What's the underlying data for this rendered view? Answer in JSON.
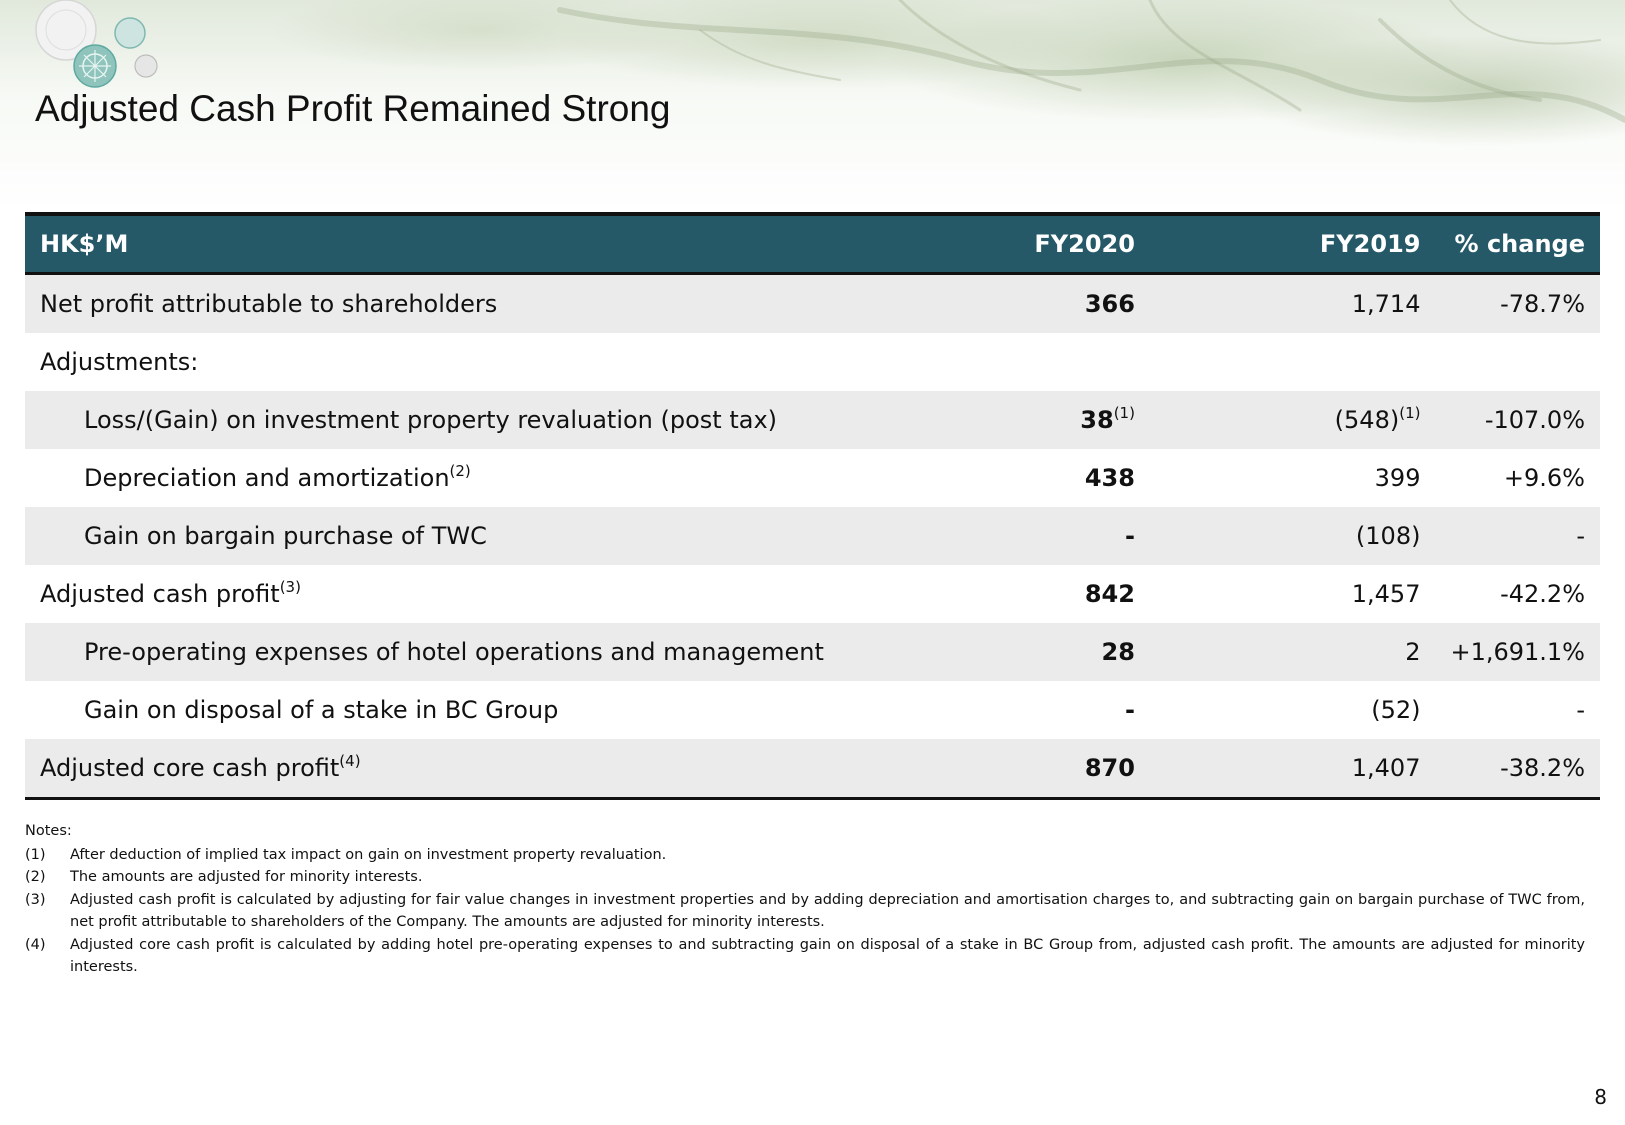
{
  "header": {
    "title": "Adjusted Cash Profit Remained Strong"
  },
  "table": {
    "columns": [
      "HK$’M",
      "FY2020",
      "FY2019",
      "% change"
    ],
    "rows": [
      {
        "label": "Net profit attributable to shareholders",
        "label_sup": "",
        "fy2020": "366",
        "fy2020_sup": "",
        "fy2019": "1,714",
        "fy2019_sup": "",
        "change": "-78.7%"
      },
      {
        "label": "Adjustments:",
        "label_sup": "",
        "fy2020": "",
        "fy2020_sup": "",
        "fy2019": "",
        "fy2019_sup": "",
        "change": ""
      },
      {
        "label": "Loss/(Gain) on investment property revaluation (post tax)",
        "label_sup": "",
        "fy2020": "38",
        "fy2020_sup": "(1)",
        "fy2019": "(548)",
        "fy2019_sup": "(1)",
        "change": "-107.0%"
      },
      {
        "label": "Depreciation and amortization",
        "label_sup": "(2)",
        "fy2020": "438",
        "fy2020_sup": "",
        "fy2019": "399",
        "fy2019_sup": "",
        "change": "+9.6%"
      },
      {
        "label": "Gain on bargain purchase of TWC",
        "label_sup": "",
        "fy2020": "-",
        "fy2020_sup": "",
        "fy2019": "(108)",
        "fy2019_sup": "",
        "change": "-"
      },
      {
        "label": "Adjusted cash profit",
        "label_sup": "(3)",
        "fy2020": "842",
        "fy2020_sup": "",
        "fy2019": "1,457",
        "fy2019_sup": "",
        "change": "-42.2%"
      },
      {
        "label": "Pre-operating expenses of hotel operations and management",
        "label_sup": "",
        "fy2020": "28",
        "fy2020_sup": "",
        "fy2019": "2",
        "fy2019_sup": "",
        "change": "+1,691.1%"
      },
      {
        "label": "Gain on disposal of a stake in BC Group",
        "label_sup": "",
        "fy2020": "-",
        "fy2020_sup": "",
        "fy2019": "(52)",
        "fy2019_sup": "",
        "change": "-"
      },
      {
        "label": "Adjusted core cash profit",
        "label_sup": "(4)",
        "fy2020": "870",
        "fy2020_sup": "",
        "fy2019": "1,407",
        "fy2019_sup": "",
        "change": "-38.2%"
      }
    ]
  },
  "notes": {
    "title": "Notes:",
    "items": [
      {
        "num": "(1)",
        "text": "After deduction of implied tax impact on gain on investment property revaluation."
      },
      {
        "num": "(2)",
        "text": "The amounts are adjusted for minority interests."
      },
      {
        "num": "(3)",
        "text": "Adjusted cash profit is calculated by adjusting for fair value changes in investment properties and by adding depreciation and amortisation charges to, and subtracting gain on bargain purchase of TWC from, net profit attributable to shareholders of the Company. The amounts are adjusted for minority interests."
      },
      {
        "num": "(4)",
        "text": "Adjusted core cash profit is calculated by adding hotel pre-operating expenses to and subtracting gain on disposal of a stake in BC Group from, adjusted cash profit. The amounts are adjusted for minority interests."
      }
    ]
  },
  "footer": {
    "page_number": "8"
  },
  "colors": {
    "header_bg": "#255968",
    "row_shade": "#ebebeb",
    "logo_teal": "#5ea9a0"
  }
}
